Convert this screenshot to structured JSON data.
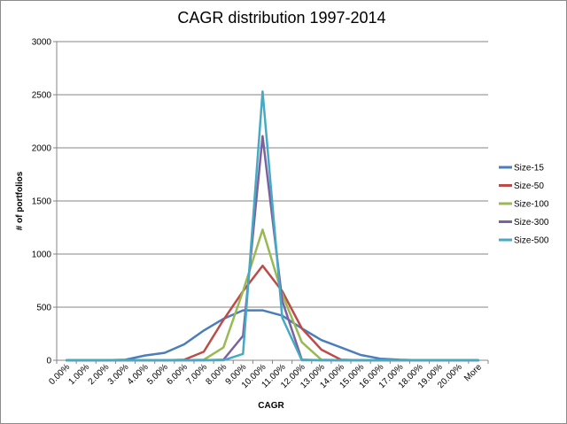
{
  "chart_data": {
    "type": "line",
    "title": "CAGR distribution 1997-2014",
    "xlabel": "CAGR",
    "ylabel": "# of portfolios",
    "ylim": [
      0,
      3000
    ],
    "yticks": [
      "0",
      "500",
      "1000",
      "1500",
      "2000",
      "2500",
      "3000"
    ],
    "grid": true,
    "legend_position": "right",
    "categories": [
      "0.00%",
      "1.00%",
      "2.00%",
      "3.00%",
      "4.00%",
      "5.00%",
      "6.00%",
      "7.00%",
      "8.00%",
      "9.00%",
      "10.00%",
      "11.00%",
      "12.00%",
      "13.00%",
      "14.00%",
      "15.00%",
      "16.00%",
      "17.00%",
      "18.00%",
      "19.00%",
      "20.00%",
      "More"
    ],
    "series": [
      {
        "name": "Size-15",
        "color": "#4a7ebb",
        "values": [
          0,
          0,
          0,
          5,
          45,
          70,
          150,
          280,
          390,
          470,
          470,
          420,
          300,
          190,
          120,
          50,
          15,
          5,
          0,
          0,
          0,
          0
        ]
      },
      {
        "name": "Size-50",
        "color": "#be4b48",
        "values": [
          0,
          0,
          0,
          0,
          0,
          0,
          5,
          80,
          380,
          650,
          890,
          650,
          300,
          100,
          5,
          0,
          0,
          0,
          0,
          0,
          0,
          0
        ]
      },
      {
        "name": "Size-100",
        "color": "#98b954",
        "values": [
          0,
          0,
          0,
          0,
          0,
          0,
          0,
          5,
          120,
          650,
          1230,
          620,
          170,
          5,
          0,
          0,
          0,
          0,
          0,
          0,
          0,
          0
        ]
      },
      {
        "name": "Size-300",
        "color": "#7d60a0",
        "values": [
          0,
          0,
          0,
          0,
          0,
          0,
          0,
          0,
          5,
          230,
          2110,
          560,
          5,
          0,
          0,
          0,
          0,
          0,
          0,
          0,
          0,
          0
        ]
      },
      {
        "name": "Size-500",
        "color": "#46aac5",
        "values": [
          0,
          0,
          0,
          0,
          0,
          0,
          0,
          0,
          0,
          60,
          2530,
          400,
          0,
          0,
          0,
          0,
          0,
          0,
          0,
          0,
          0,
          0
        ]
      }
    ]
  }
}
